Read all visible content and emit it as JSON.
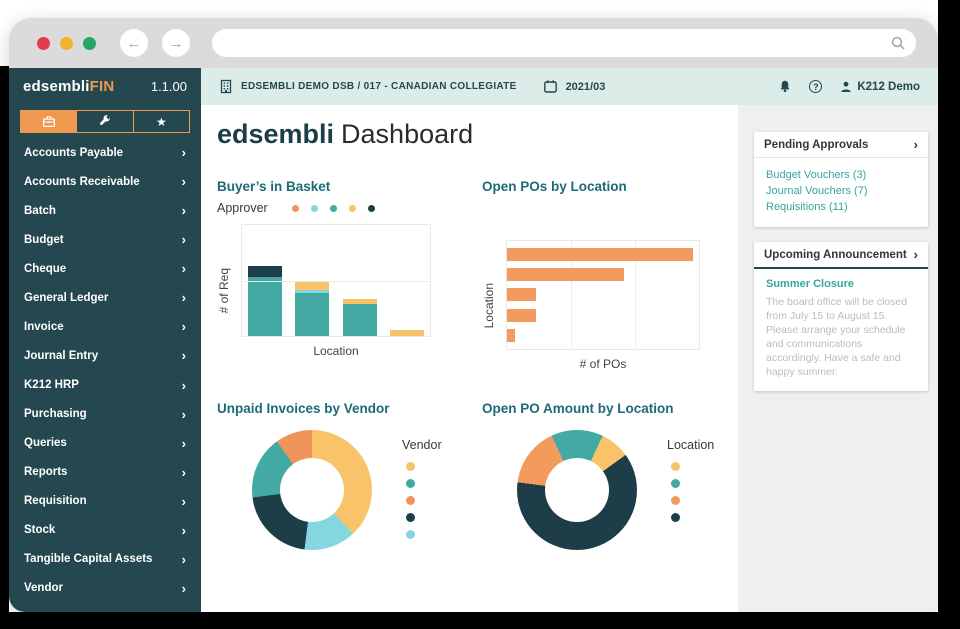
{
  "browser": {
    "back_arrow": "←",
    "forward_arrow": "→"
  },
  "sidebar": {
    "brand": "edsembli",
    "brand_suffix": "FIN",
    "version": "1.1.00",
    "tabs": [
      {
        "icon": "briefcase-icon",
        "active": true
      },
      {
        "icon": "wrench-icon",
        "active": false
      },
      {
        "icon": "star-icon",
        "active": false
      }
    ],
    "chevron": "›",
    "items": [
      "Accounts Payable",
      "Accounts Receivable",
      "Batch",
      "Budget",
      "Cheque",
      "General Ledger",
      "Invoice",
      "Journal Entry",
      "K212 HRP",
      "Purchasing",
      "Queries",
      "Reports",
      "Requisition",
      "Stock",
      "Tangible Capital Assets",
      "Vendor"
    ]
  },
  "topbar": {
    "organization": "EDSEMBLI DEMO DSB / 017 - CANADIAN COLLEGIATE",
    "period": "2021/03",
    "help": "?",
    "user": "K212 Demo"
  },
  "page": {
    "title_brand": "edsembli",
    "title_rest": "Dashboard"
  },
  "right_panel": {
    "pending": {
      "title": "Pending Approvals",
      "chevron": "›",
      "links": [
        "Budget Vouchers (3)",
        "Journal Vouchers (7)",
        "Requisitions (11)"
      ]
    },
    "announcement": {
      "title": "Upcoming Announcement",
      "chevron": "›",
      "link": "Summer Closure",
      "body": "The board office will be closed from July 15 to August 15. Please arrange your schedule and communications accordingly. Have a safe and happy summer."
    }
  },
  "colors": {
    "sidebar_bg": "#25474f",
    "accent_orange": "#ef9950",
    "mint_bar": "#dcede9",
    "title_teal": "#1c6b79",
    "link_teal": "#35a79c",
    "dark": "#1d3e49",
    "teal": "#43a9a3",
    "yellow": "#f9c469",
    "orange": "#f29b5d",
    "light_blue": "#84d7de"
  },
  "chart_data": [
    {
      "type": "bar",
      "title": "Buyer’s in Basket",
      "legend_title": "Approver",
      "legend_position": "top",
      "legend_colors": [
        "#f0945c",
        "#84d7de",
        "#43a9a3",
        "#f9c469",
        "#1d3e49"
      ],
      "xlabel": "Location",
      "ylabel": "# of Req",
      "categories": [
        "",
        "",
        "",
        ""
      ],
      "series": [
        {
          "name": "approver-teal",
          "color": "#43a9a3",
          "values": [
            52,
            38,
            28,
            0
          ]
        },
        {
          "name": "approver-light-blue",
          "color": "#84d7de",
          "values": [
            0,
            3,
            0,
            0
          ]
        },
        {
          "name": "approver-yellow",
          "color": "#f9c469",
          "values": [
            0,
            7,
            5,
            5
          ]
        },
        {
          "name": "approver-dark",
          "color": "#1d3e49",
          "values": [
            10,
            0,
            0,
            0
          ]
        }
      ],
      "ylim": [
        0,
        100
      ],
      "gridlines_y": [
        50
      ],
      "note": "stacked bars, axis tick labels not shown; values estimated from pixels"
    },
    {
      "type": "bar",
      "orientation": "horizontal",
      "title": "Open POs by Location",
      "xlabel": "# of POs",
      "ylabel": "Location",
      "categories": [
        "",
        "",
        "",
        "",
        ""
      ],
      "values": [
        97,
        61,
        15,
        15,
        4
      ],
      "color": "#f29b5d",
      "xlim": [
        0,
        100
      ],
      "gridlines_x": [
        33.3,
        66.7
      ],
      "note": "axis tick labels not shown; values estimated from pixels"
    },
    {
      "type": "pie",
      "donut": true,
      "title": "Unpaid Invoices by Vendor",
      "legend_title": "Vendor",
      "legend_position": "right",
      "start_angle": 0,
      "segments": [
        {
          "color": "#f9c469",
          "value": 38
        },
        {
          "color": "#84d7de",
          "value": 14
        },
        {
          "color": "#1d3e49",
          "value": 21
        },
        {
          "color": "#43a9a3",
          "value": 17
        },
        {
          "color": "#f0945c",
          "value": 10
        }
      ],
      "legend_colors": [
        "#f9c469",
        "#43a9a3",
        "#f0945c",
        "#1d3e49",
        "#84d7de"
      ],
      "note": "slice labels not shown; percentages estimated from angles"
    },
    {
      "type": "pie",
      "donut": true,
      "title": "Open PO Amount by Location",
      "legend_title": "Location",
      "legend_position": "right",
      "start_angle": -25,
      "segments": [
        {
          "color": "#43a9a3",
          "value": 14
        },
        {
          "color": "#f9c469",
          "value": 8
        },
        {
          "color": "#1d3e49",
          "value": 62
        },
        {
          "color": "#f29b5d",
          "value": 16
        }
      ],
      "legend_colors": [
        "#f9c469",
        "#43a9a3",
        "#f29b5d",
        "#1d3e49"
      ],
      "note": "slice labels not shown; percentages estimated from angles"
    }
  ]
}
